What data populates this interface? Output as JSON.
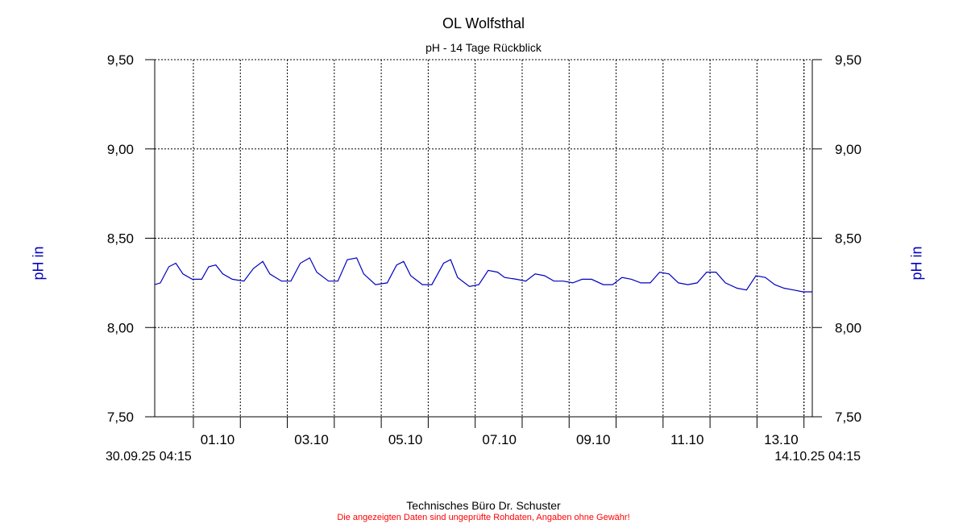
{
  "chart_data": {
    "type": "line",
    "title": "OL Wolfsthal",
    "subtitle": "pH - 14 Tage Rückblick",
    "ylabel_left": "pH in",
    "ylabel_right": "pH in",
    "ylim": [
      7.5,
      9.5
    ],
    "y_ticks": [
      "9,50",
      "9,00",
      "8,50",
      "8,00",
      "7,50"
    ],
    "y_tick_values": [
      9.5,
      9.0,
      8.5,
      8.0,
      7.5
    ],
    "x_start_label": "30.09.25 04:15",
    "x_end_label": "14.10.25 04:15",
    "x_tick_labels": [
      "01.10",
      "03.10",
      "05.10",
      "07.10",
      "09.10",
      "11.10",
      "13.10"
    ],
    "x_tick_days": [
      0.823,
      2.823,
      4.823,
      6.823,
      8.823,
      10.823,
      12.823
    ],
    "grid": true,
    "color": "#0000c0",
    "series": [
      {
        "x_days": [
          0.0,
          0.12,
          0.3,
          0.45,
          0.6,
          0.8,
          1.0,
          1.15,
          1.3,
          1.45,
          1.65,
          1.9,
          2.1,
          2.3,
          2.45,
          2.7,
          2.9,
          3.1,
          3.3,
          3.45,
          3.7,
          3.9,
          4.1,
          4.3,
          4.45,
          4.7,
          4.95,
          5.15,
          5.3,
          5.45,
          5.7,
          5.9,
          6.15,
          6.3,
          6.45,
          6.7,
          6.9,
          7.1,
          7.3,
          7.45,
          7.7,
          7.9,
          8.1,
          8.3,
          8.5,
          8.7,
          8.9,
          9.1,
          9.3,
          9.55,
          9.75,
          9.95,
          10.15,
          10.35,
          10.55,
          10.75,
          10.95,
          11.15,
          11.35,
          11.55,
          11.75,
          11.95,
          12.15,
          12.4,
          12.6,
          12.8,
          13.0,
          13.2,
          13.4,
          13.6,
          13.8,
          14.0
        ],
        "values": [
          8.24,
          8.25,
          8.34,
          8.36,
          8.3,
          8.27,
          8.27,
          8.34,
          8.35,
          8.3,
          8.27,
          8.26,
          8.33,
          8.37,
          8.3,
          8.26,
          8.26,
          8.36,
          8.39,
          8.31,
          8.26,
          8.26,
          8.38,
          8.39,
          8.3,
          8.24,
          8.25,
          8.35,
          8.37,
          8.29,
          8.24,
          8.24,
          8.36,
          8.38,
          8.28,
          8.23,
          8.24,
          8.32,
          8.31,
          8.28,
          8.27,
          8.26,
          8.3,
          8.29,
          8.26,
          8.26,
          8.25,
          8.27,
          8.27,
          8.24,
          8.24,
          8.28,
          8.27,
          8.25,
          8.25,
          8.31,
          8.3,
          8.25,
          8.24,
          8.25,
          8.31,
          8.31,
          8.25,
          8.22,
          8.21,
          8.29,
          8.28,
          8.24,
          8.22,
          8.21,
          8.2,
          8.2
        ]
      }
    ]
  },
  "footer": {
    "company": "Technisches Büro Dr. Schuster",
    "disclaimer": "Die angezeigten Daten sind ungeprüfte Rohdaten, Angaben ohne Gewähr!"
  }
}
